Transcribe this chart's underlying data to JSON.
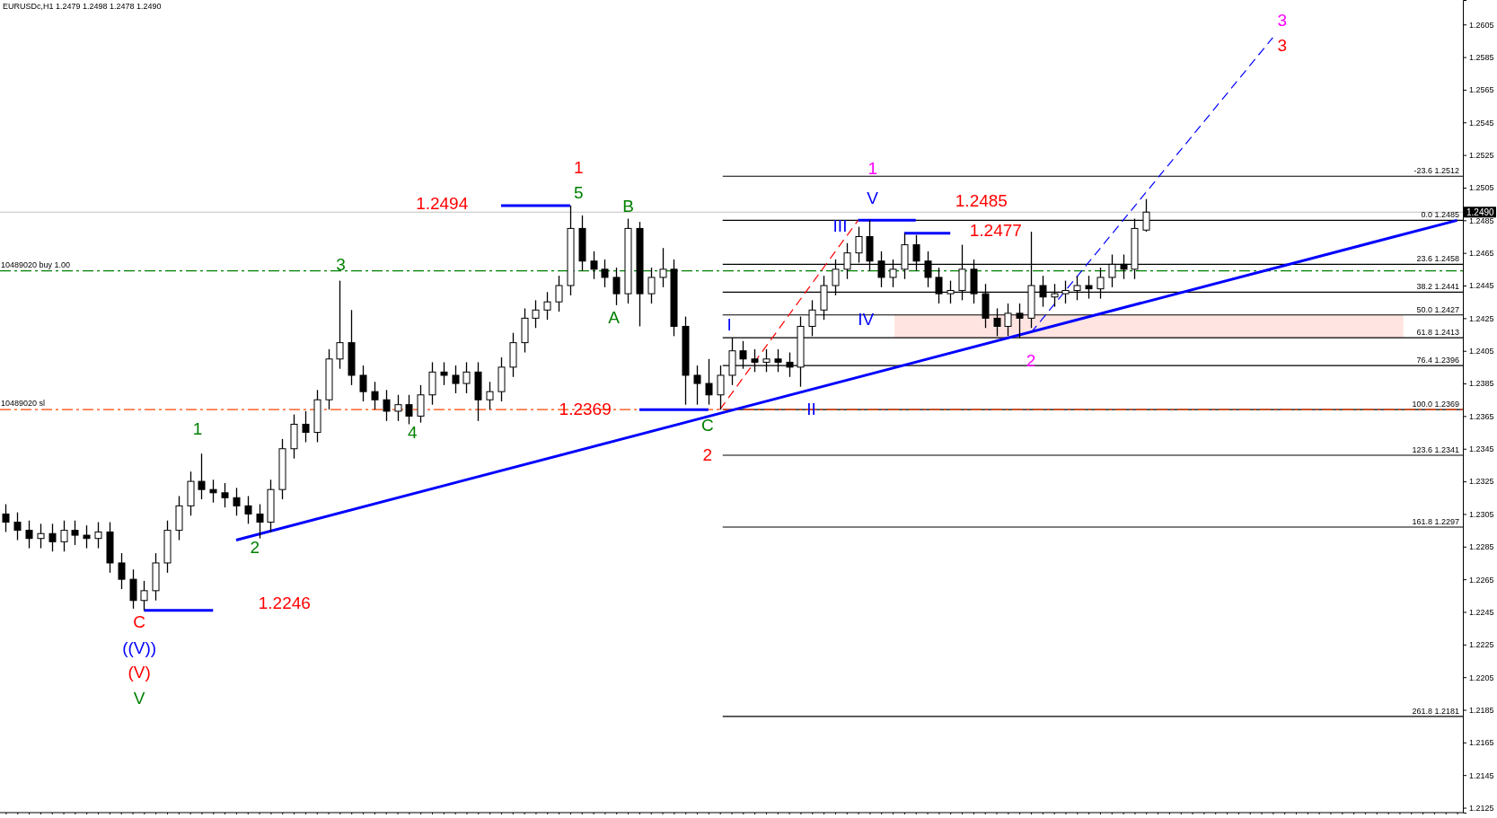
{
  "chart_data": {
    "type": "candlestick",
    "title": "EURUSDc,H1  1.2479 1.2498 1.2478 1.2490",
    "categories": [
      null,
      null,
      null,
      null,
      null,
      null,
      null,
      null,
      null,
      null,
      null,
      null,
      null,
      null,
      null,
      null,
      null,
      null,
      null,
      null,
      null,
      null,
      null,
      null,
      null,
      null,
      null,
      null,
      null,
      null,
      null,
      null,
      null,
      null,
      null,
      null,
      null,
      null,
      null,
      null,
      null,
      null,
      null,
      null,
      null,
      null,
      null,
      null,
      null,
      null,
      null,
      null,
      null,
      null,
      null,
      null,
      null,
      null,
      null,
      null,
      null,
      null,
      null,
      null,
      null,
      null,
      null,
      null,
      null,
      null,
      null,
      null,
      null,
      null,
      null,
      null,
      null,
      null,
      null,
      null,
      null,
      null,
      null,
      null,
      null,
      null,
      null,
      null,
      null,
      null,
      null,
      null,
      null,
      null,
      null,
      null,
      null,
      null,
      null,
      null,
      null,
      null,
      null,
      null,
      null,
      null,
      null,
      null,
      null,
      null,
      null,
      null,
      null,
      null,
      null,
      null,
      null,
      null,
      null,
      null,
      null,
      null,
      null,
      null,
      null,
      null,
      null
    ],
    "ohlc": [
      [
        1.2305,
        1.2311,
        1.2294,
        1.23
      ],
      [
        1.23,
        1.2306,
        1.2289,
        1.2295
      ],
      [
        1.2295,
        1.2301,
        1.2284,
        1.229
      ],
      [
        1.229,
        1.2299,
        1.2284,
        1.2293
      ],
      [
        1.2293,
        1.2299,
        1.2282,
        1.2288
      ],
      [
        1.2288,
        1.2301,
        1.2282,
        1.2295
      ],
      [
        1.2295,
        1.2301,
        1.2286,
        1.2292
      ],
      [
        1.2292,
        1.2298,
        1.2284,
        1.229
      ],
      [
        1.229,
        1.23,
        1.2284,
        1.2294
      ],
      [
        1.2294,
        1.23,
        1.2269,
        1.2275
      ],
      [
        1.2275,
        1.2281,
        1.2259,
        1.2265
      ],
      [
        1.2265,
        1.2271,
        1.2247,
        1.2252
      ],
      [
        1.2252,
        1.2264,
        1.2246,
        1.2258
      ],
      [
        1.2258,
        1.2281,
        1.2252,
        1.2275
      ],
      [
        1.2275,
        1.2301,
        1.2269,
        1.2295
      ],
      [
        1.2295,
        1.2316,
        1.2289,
        1.231
      ],
      [
        1.231,
        1.2331,
        1.2304,
        1.2325
      ],
      [
        1.2325,
        1.2342,
        1.2314,
        1.232
      ],
      [
        1.232,
        1.2326,
        1.2312,
        1.2318
      ],
      [
        1.2318,
        1.2324,
        1.2309,
        1.2315
      ],
      [
        1.2315,
        1.2321,
        1.2304,
        1.231
      ],
      [
        1.231,
        1.2316,
        1.2299,
        1.2305
      ],
      [
        1.2305,
        1.2311,
        1.229,
        1.23
      ],
      [
        1.23,
        1.2326,
        1.2294,
        1.232
      ],
      [
        1.232,
        1.2351,
        1.2314,
        1.2345
      ],
      [
        1.2345,
        1.2366,
        1.2339,
        1.236
      ],
      [
        1.236,
        1.2368,
        1.2349,
        1.2355
      ],
      [
        1.2355,
        1.2381,
        1.2349,
        1.2375
      ],
      [
        1.2375,
        1.2406,
        1.2369,
        1.24
      ],
      [
        1.24,
        1.2448,
        1.2394,
        1.241
      ],
      [
        1.241,
        1.243,
        1.2384,
        1.239
      ],
      [
        1.239,
        1.2396,
        1.2374,
        1.238
      ],
      [
        1.238,
        1.2386,
        1.2369,
        1.2375
      ],
      [
        1.2375,
        1.2381,
        1.2362,
        1.2368
      ],
      [
        1.2368,
        1.2378,
        1.2362,
        1.2372
      ],
      [
        1.2372,
        1.2378,
        1.236,
        1.2365
      ],
      [
        1.2365,
        1.2384,
        1.2361,
        1.2378
      ],
      [
        1.2378,
        1.2398,
        1.2372,
        1.2392
      ],
      [
        1.2392,
        1.2398,
        1.2384,
        1.239
      ],
      [
        1.239,
        1.2396,
        1.2379,
        1.2385
      ],
      [
        1.2385,
        1.2398,
        1.2379,
        1.2392
      ],
      [
        1.2392,
        1.2398,
        1.2362,
        1.2375
      ],
      [
        1.2375,
        1.2386,
        1.2369,
        1.238
      ],
      [
        1.238,
        1.2401,
        1.2374,
        1.2395
      ],
      [
        1.2395,
        1.2416,
        1.2389,
        1.241
      ],
      [
        1.241,
        1.2431,
        1.2404,
        1.2425
      ],
      [
        1.2425,
        1.2436,
        1.2419,
        1.243
      ],
      [
        1.243,
        1.2441,
        1.2424,
        1.2435
      ],
      [
        1.2435,
        1.2451,
        1.2429,
        1.2445
      ],
      [
        1.2445,
        1.2494,
        1.2439,
        1.248
      ],
      [
        1.248,
        1.2488,
        1.2454,
        1.246
      ],
      [
        1.246,
        1.2466,
        1.2449,
        1.2455
      ],
      [
        1.2455,
        1.2461,
        1.2444,
        1.245
      ],
      [
        1.245,
        1.2456,
        1.2433,
        1.244
      ],
      [
        1.244,
        1.2486,
        1.2434,
        1.248
      ],
      [
        1.248,
        1.2484,
        1.242,
        1.244
      ],
      [
        1.244,
        1.2456,
        1.2434,
        1.245
      ],
      [
        1.245,
        1.2468,
        1.2444,
        1.2455
      ],
      [
        1.2455,
        1.2461,
        1.2414,
        1.242
      ],
      [
        1.242,
        1.2426,
        1.2372,
        1.239
      ],
      [
        1.239,
        1.2396,
        1.2372,
        1.2385
      ],
      [
        1.2385,
        1.24,
        1.2372,
        1.2378
      ],
      [
        1.2378,
        1.2396,
        1.2369,
        1.239
      ],
      [
        1.239,
        1.2413,
        1.2384,
        1.2405
      ],
      [
        1.2405,
        1.2411,
        1.2394,
        1.24
      ],
      [
        1.24,
        1.2406,
        1.2392,
        1.2398
      ],
      [
        1.2398,
        1.2406,
        1.2392,
        1.24
      ],
      [
        1.24,
        1.2406,
        1.2392,
        1.2398
      ],
      [
        1.2398,
        1.2404,
        1.2389,
        1.2395
      ],
      [
        1.2395,
        1.2426,
        1.2383,
        1.242
      ],
      [
        1.242,
        1.2436,
        1.2414,
        1.243
      ],
      [
        1.243,
        1.2451,
        1.2424,
        1.2445
      ],
      [
        1.2445,
        1.2461,
        1.2439,
        1.2455
      ],
      [
        1.2455,
        1.2471,
        1.2449,
        1.2465
      ],
      [
        1.2465,
        1.2481,
        1.2459,
        1.2475
      ],
      [
        1.2475,
        1.2485,
        1.2454,
        1.246
      ],
      [
        1.246,
        1.2466,
        1.2444,
        1.245
      ],
      [
        1.245,
        1.2461,
        1.2444,
        1.2455
      ],
      [
        1.2455,
        1.2477,
        1.2449,
        1.247
      ],
      [
        1.247,
        1.2476,
        1.2454,
        1.246
      ],
      [
        1.246,
        1.2466,
        1.2444,
        1.245
      ],
      [
        1.245,
        1.2456,
        1.2434,
        1.244
      ],
      [
        1.244,
        1.2448,
        1.2434,
        1.2442
      ],
      [
        1.2442,
        1.247,
        1.2436,
        1.2455
      ],
      [
        1.2455,
        1.2461,
        1.2434,
        1.244
      ],
      [
        1.244,
        1.2446,
        1.2419,
        1.2425
      ],
      [
        1.2425,
        1.2431,
        1.2414,
        1.242
      ],
      [
        1.242,
        1.2434,
        1.2414,
        1.2428
      ],
      [
        1.2428,
        1.2434,
        1.2413,
        1.2425
      ],
      [
        1.2425,
        1.2478,
        1.2419,
        1.2445
      ],
      [
        1.2445,
        1.2451,
        1.2432,
        1.2438
      ],
      [
        1.2438,
        1.2446,
        1.2432,
        1.244
      ],
      [
        1.244,
        1.2448,
        1.2434,
        1.2442
      ],
      [
        1.2442,
        1.2451,
        1.2436,
        1.2445
      ],
      [
        1.2445,
        1.2451,
        1.2437,
        1.2443
      ],
      [
        1.2443,
        1.2456,
        1.2437,
        1.245
      ],
      [
        1.245,
        1.2464,
        1.2444,
        1.2458
      ],
      [
        1.2458,
        1.2464,
        1.2449,
        1.2455
      ],
      [
        1.2455,
        1.2486,
        1.2449,
        1.248
      ],
      [
        1.2479,
        1.2498,
        1.2478,
        1.249
      ],
      null,
      null,
      null,
      null,
      null,
      null,
      null,
      null,
      null,
      null,
      null,
      null,
      null,
      null,
      null,
      null,
      null,
      null,
      null,
      null,
      null,
      null,
      null,
      null,
      null,
      null,
      null
    ],
    "series": [
      {
        "type": "line",
        "color": "#0000ff",
        "line_style": "solid",
        "values": [
          null,
          null,
          null,
          null,
          null,
          null,
          null,
          null,
          null,
          null,
          null,
          null,
          null,
          null,
          null,
          null,
          null,
          null,
          null,
          null,
          1.2289,
          null,
          null,
          null,
          null,
          null,
          null,
          null,
          null,
          null,
          null,
          null,
          null,
          null,
          null,
          null,
          null,
          null,
          null,
          null,
          null,
          null,
          null,
          null,
          null,
          null,
          null,
          null,
          null,
          null,
          null,
          null,
          null,
          null,
          null,
          null,
          null,
          null,
          null,
          null,
          null,
          null,
          null,
          null,
          null,
          null,
          null,
          null,
          null,
          null,
          null,
          null,
          null,
          null,
          null,
          null,
          null,
          null,
          null,
          null,
          null,
          null,
          null,
          null,
          null,
          null,
          null,
          null,
          null,
          null,
          null,
          null,
          null,
          null,
          null,
          null,
          null,
          null,
          null,
          null,
          null,
          null,
          null,
          null,
          null,
          null,
          null,
          null,
          null,
          null,
          null,
          null,
          null,
          null,
          null,
          null,
          null,
          null,
          null,
          null,
          null,
          null,
          null,
          null,
          null,
          null,
          1.2485
        ]
      },
      {
        "type": "line",
        "color": "#ff0000",
        "line_style": "dashed",
        "values": [
          null,
          null,
          null,
          null,
          null,
          null,
          null,
          null,
          null,
          null,
          null,
          null,
          null,
          null,
          null,
          null,
          null,
          null,
          null,
          null,
          null,
          null,
          null,
          null,
          null,
          null,
          null,
          null,
          null,
          null,
          null,
          null,
          null,
          null,
          null,
          null,
          null,
          null,
          null,
          null,
          null,
          null,
          null,
          null,
          null,
          null,
          null,
          null,
          null,
          null,
          null,
          null,
          null,
          null,
          null,
          null,
          null,
          null,
          null,
          null,
          null,
          null,
          1.2369,
          null,
          null,
          null,
          null,
          null,
          null,
          null,
          null,
          null,
          null,
          null,
          1.2485,
          null,
          null,
          null,
          null,
          null,
          null,
          null,
          null,
          null,
          null,
          null,
          null,
          null,
          null,
          null,
          null,
          null,
          null,
          null,
          null,
          null,
          null,
          null,
          null,
          null,
          null,
          null,
          null,
          null,
          null,
          null,
          null,
          null,
          null,
          null,
          null,
          null,
          null,
          null,
          null,
          null,
          null,
          null,
          null,
          null,
          null,
          null,
          null,
          null,
          null,
          null,
          null
        ]
      },
      {
        "type": "line",
        "color": "#0000ff",
        "line_style": "dashed",
        "values": [
          null,
          null,
          null,
          null,
          null,
          null,
          null,
          null,
          null,
          null,
          null,
          null,
          null,
          null,
          null,
          null,
          null,
          null,
          null,
          null,
          null,
          null,
          null,
          null,
          null,
          null,
          null,
          null,
          null,
          null,
          null,
          null,
          null,
          null,
          null,
          null,
          null,
          null,
          null,
          null,
          null,
          null,
          null,
          null,
          null,
          null,
          null,
          null,
          null,
          null,
          null,
          null,
          null,
          null,
          null,
          null,
          null,
          null,
          null,
          null,
          null,
          null,
          null,
          null,
          null,
          null,
          null,
          null,
          null,
          null,
          null,
          null,
          null,
          null,
          null,
          null,
          null,
          null,
          null,
          null,
          null,
          null,
          null,
          null,
          null,
          null,
          null,
          null,
          null,
          1.2416,
          null,
          null,
          null,
          null,
          null,
          null,
          null,
          null,
          null,
          null,
          null,
          null,
          null,
          null,
          null,
          null,
          null,
          null,
          null,
          null,
          1.2597,
          null,
          null,
          null,
          null,
          null,
          null,
          null,
          null,
          null,
          null,
          null,
          null,
          null,
          null,
          null,
          null
        ]
      },
      {
        "type": "line",
        "color": "#0000ff",
        "line_style": "solid",
        "values": [
          null,
          null,
          null,
          null,
          null,
          null,
          null,
          null,
          null,
          null,
          null,
          null,
          null,
          null,
          null,
          null,
          null,
          null,
          null,
          null,
          null,
          null,
          null,
          null,
          null,
          null,
          null,
          null,
          null,
          null,
          null,
          null,
          null,
          null,
          null,
          null,
          null,
          null,
          null,
          null,
          null,
          null,
          null,
          1.2494,
          1.2494,
          1.2494,
          1.2494,
          1.2494,
          1.2494,
          1.2494,
          null,
          null,
          null,
          null,
          null,
          null,
          null,
          null,
          null,
          null,
          null,
          null,
          null,
          null,
          null,
          null,
          null,
          null,
          null,
          null,
          null,
          null,
          null,
          null,
          null,
          null,
          null,
          null,
          null,
          null,
          null,
          null,
          null,
          null,
          null,
          null,
          null,
          null,
          null,
          null,
          null,
          null,
          null,
          null,
          null,
          null,
          null,
          null,
          null,
          null,
          null,
          null,
          null,
          null,
          null,
          null,
          null,
          null,
          null,
          null,
          null,
          null,
          null,
          null,
          null,
          null,
          null,
          null,
          null,
          null,
          null,
          null,
          null,
          null,
          null,
          null,
          null
        ]
      },
      {
        "type": "line",
        "color": "#0000ff",
        "line_style": "solid",
        "values": [
          null,
          null,
          null,
          null,
          null,
          null,
          null,
          null,
          null,
          null,
          null,
          null,
          null,
          null,
          null,
          null,
          null,
          null,
          null,
          null,
          null,
          null,
          null,
          null,
          null,
          null,
          null,
          null,
          null,
          null,
          null,
          null,
          null,
          null,
          null,
          null,
          null,
          null,
          null,
          null,
          null,
          null,
          null,
          null,
          null,
          null,
          null,
          null,
          null,
          null,
          null,
          null,
          null,
          null,
          null,
          1.2369,
          1.2369,
          1.2369,
          1.2369,
          1.2369,
          1.2369,
          1.2369,
          null,
          null,
          null,
          null,
          null,
          null,
          null,
          null,
          null,
          null,
          null,
          null,
          null,
          null,
          null,
          null,
          null,
          null,
          null,
          null,
          null,
          null,
          null,
          null,
          null,
          null,
          null,
          null,
          null,
          null,
          null,
          null,
          null,
          null,
          null,
          null,
          null,
          null,
          null,
          null,
          null,
          null,
          null,
          null,
          null,
          null,
          null,
          null,
          null,
          null,
          null,
          null,
          null,
          null,
          null,
          null,
          null,
          null,
          null,
          null,
          null,
          null,
          null,
          null,
          null
        ]
      },
      {
        "type": "line",
        "color": "#0000ff",
        "line_style": "solid",
        "values": [
          null,
          null,
          null,
          null,
          null,
          null,
          null,
          null,
          null,
          null,
          null,
          null,
          1.2246,
          1.2246,
          1.2246,
          1.2246,
          1.2246,
          1.2246,
          1.2246,
          null,
          null,
          null,
          null,
          null,
          null,
          null,
          null,
          null,
          null,
          null,
          null,
          null,
          null,
          null,
          null,
          null,
          null,
          null,
          null,
          null,
          null,
          null,
          null,
          null,
          null,
          null,
          null,
          null,
          null,
          null,
          null,
          null,
          null,
          null,
          null,
          null,
          null,
          null,
          null,
          null,
          null,
          null,
          null,
          null,
          null,
          null,
          null,
          null,
          null,
          null,
          null,
          null,
          null,
          null,
          null,
          null,
          null,
          null,
          null,
          null,
          null,
          null,
          null,
          null,
          null,
          null,
          null,
          null,
          null,
          null,
          null,
          null,
          null,
          null,
          null,
          null,
          null,
          null,
          null,
          null,
          null,
          null,
          null,
          null,
          null,
          null,
          null,
          null,
          null,
          null,
          null,
          null,
          null,
          null,
          null,
          null,
          null,
          null,
          null,
          null,
          null,
          null,
          null,
          null,
          null,
          null,
          null
        ]
      },
      {
        "type": "line",
        "color": "#0000ff",
        "line_style": "solid",
        "values": [
          null,
          null,
          null,
          null,
          null,
          null,
          null,
          null,
          null,
          null,
          null,
          null,
          null,
          null,
          null,
          null,
          null,
          null,
          null,
          null,
          null,
          null,
          null,
          null,
          null,
          null,
          null,
          null,
          null,
          null,
          null,
          null,
          null,
          null,
          null,
          null,
          null,
          null,
          null,
          null,
          null,
          null,
          null,
          null,
          null,
          null,
          null,
          null,
          null,
          null,
          null,
          null,
          null,
          null,
          null,
          null,
          null,
          null,
          null,
          null,
          null,
          null,
          null,
          null,
          null,
          null,
          null,
          null,
          null,
          null,
          null,
          null,
          null,
          null,
          1.2485,
          1.2485,
          1.2485,
          1.2485,
          1.2485,
          1.2485,
          null,
          null,
          null,
          null,
          null,
          null,
          null,
          null,
          null,
          null,
          null,
          null,
          null,
          null,
          null,
          null,
          null,
          null,
          null,
          null,
          null,
          null,
          null,
          null,
          null,
          null,
          null,
          null,
          null,
          null,
          null,
          null,
          null,
          null,
          null,
          null,
          null,
          null,
          null,
          null,
          null,
          null,
          null,
          null,
          null,
          null,
          null
        ]
      },
      {
        "type": "line",
        "color": "#0000ff",
        "line_style": "solid",
        "values": [
          null,
          null,
          null,
          null,
          null,
          null,
          null,
          null,
          null,
          null,
          null,
          null,
          null,
          null,
          null,
          null,
          null,
          null,
          null,
          null,
          null,
          null,
          null,
          null,
          null,
          null,
          null,
          null,
          null,
          null,
          null,
          null,
          null,
          null,
          null,
          null,
          null,
          null,
          null,
          null,
          null,
          null,
          null,
          null,
          null,
          null,
          null,
          null,
          null,
          null,
          null,
          null,
          null,
          null,
          null,
          null,
          null,
          null,
          null,
          null,
          null,
          null,
          null,
          null,
          null,
          null,
          null,
          null,
          null,
          null,
          null,
          null,
          null,
          null,
          null,
          null,
          null,
          null,
          1.2477,
          1.2477,
          1.2477,
          1.2477,
          1.2477,
          null,
          null,
          null,
          null,
          null,
          null,
          null,
          null,
          null,
          null,
          null,
          null,
          null,
          null,
          null,
          null,
          null,
          null,
          null,
          null,
          null,
          null,
          null,
          null,
          null,
          null,
          null,
          null,
          null,
          null,
          null,
          null,
          null,
          null,
          null,
          null,
          null,
          null,
          null,
          null,
          null,
          null,
          null,
          null
        ]
      }
    ],
    "ylim": [
      1.2122,
      1.262
    ],
    "yticks": [
      1.2125,
      1.2145,
      1.2165,
      1.2185,
      1.2205,
      1.2225,
      1.2245,
      1.2265,
      1.2285,
      1.2305,
      1.2325,
      1.2345,
      1.2365,
      1.2385,
      1.2405,
      1.2425,
      1.2445,
      1.2465,
      1.2485,
      1.2505,
      1.2525,
      1.2545,
      1.2565,
      1.2585,
      1.2605
    ],
    "tick_labels": "y",
    "grid": false,
    "ref_lines": [
      {
        "axis": "y",
        "value": 1.2512,
        "label": "-23.6 1.2512",
        "color": "#000000"
      },
      {
        "axis": "y",
        "value": 1.2485,
        "label": "0.0 1.2485",
        "color": "#000000"
      },
      {
        "axis": "y",
        "value": 1.2458,
        "label": "23.6 1.2458",
        "color": "#000000"
      },
      {
        "axis": "y",
        "value": 1.2441,
        "label": "38.2 1.2441",
        "color": "#000000"
      },
      {
        "axis": "y",
        "value": 1.2427,
        "label": "50.0 1.2427",
        "color": "#000000"
      },
      {
        "axis": "y",
        "value": 1.2413,
        "label": "61.8 1.2413",
        "color": "#000000"
      },
      {
        "axis": "y",
        "value": 1.2396,
        "label": "76.4 1.2396",
        "color": "#000000"
      },
      {
        "axis": "y",
        "value": 1.2369,
        "label": "100.0 1.2369",
        "color": "#000000"
      },
      {
        "axis": "y",
        "value": 1.2341,
        "label": "123.6 1.2341",
        "color": "#000000"
      },
      {
        "axis": "y",
        "value": 1.2297,
        "label": "161.8 1.2297",
        "color": "#000000"
      },
      {
        "axis": "y",
        "value": 1.2181,
        "label": "261.8 1.2181",
        "color": "#000000"
      },
      {
        "axis": "y",
        "value": 1.2454,
        "label": "10489020 buy 1.00",
        "color": "#008000",
        "line_style": "dashed"
      },
      {
        "axis": "y",
        "value": 1.2369,
        "label": "10489020 sl",
        "color": "#ff4500",
        "line_style": "dashed"
      },
      {
        "axis": "y",
        "value": 1.249,
        "label": "1.2490",
        "color": "#c0c0c0"
      }
    ],
    "bands": [
      {
        "axis": "y",
        "from": 1.2413,
        "to": 1.2427,
        "color": "#ffe4e1"
      }
    ],
    "annotations": [
      "1.2494",
      "1.2369",
      "1.2246",
      "1.2485",
      "1.2477",
      "1",
      "5",
      "B",
      "A",
      "3",
      "4",
      "1",
      "2",
      "C",
      "((V))",
      "(V)",
      "V",
      "C",
      "2",
      "I",
      "II",
      "III",
      "IV",
      "V",
      "1",
      "2",
      "3",
      "3"
    ]
  }
}
